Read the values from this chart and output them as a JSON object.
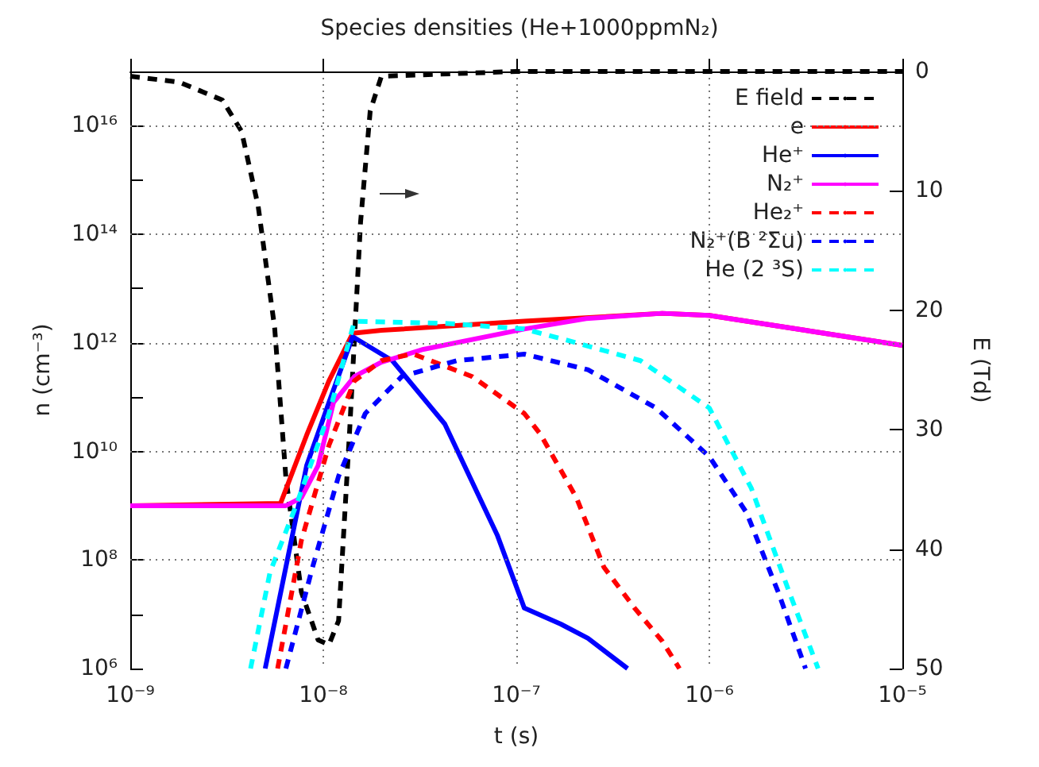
{
  "chart_data": {
    "type": "line",
    "title": "Species densities (He+1000ppmN₂)",
    "xlabel": "t (s)",
    "ylabel": "n (cm⁻³)",
    "y2label": "E (Td)",
    "log": "xy",
    "xlim": [
      1e-09,
      1e-05
    ],
    "xticks": [
      {
        "value": 1e-09,
        "label": "10⁻⁹"
      },
      {
        "value": 1e-08,
        "label": "10⁻⁸"
      },
      {
        "value": 1e-07,
        "label": "10⁻⁷"
      },
      {
        "value": 1e-06,
        "label": "10⁻⁶"
      },
      {
        "value": 1e-05,
        "label": "10⁻⁵"
      }
    ],
    "ylim": [
      1000000.0,
      1e+17
    ],
    "yticks": [
      {
        "value": 1000000.0,
        "label": "10⁶"
      },
      {
        "value": 10000000.0,
        "label": null
      },
      {
        "value": 100000000.0,
        "label": "10⁸"
      },
      {
        "value": 1000000000.0,
        "label": null
      },
      {
        "value": 10000000000.0,
        "label": "10¹⁰"
      },
      {
        "value": 100000000000.0,
        "label": null
      },
      {
        "value": 1000000000000.0,
        "label": "10¹²"
      },
      {
        "value": 10000000000000.0,
        "label": null
      },
      {
        "value": 100000000000000.0,
        "label": "10¹⁴"
      },
      {
        "value": 1000000000000000.0,
        "label": null
      },
      {
        "value": 1e+16,
        "label": "10¹⁶"
      }
    ],
    "y2lim": [
      50,
      0
    ],
    "y2ticks": [
      0,
      10,
      20,
      30,
      40,
      50
    ],
    "grid": true,
    "legend": "top right",
    "marker": "none",
    "series": [
      {
        "name": "E field",
        "color": "#000000",
        "axis": "y2",
        "line_style": "dashed",
        "x": [
          1e-09,
          1.8e-09,
          3e-09,
          3.77e-09,
          4.6e-09,
          5.6e-09,
          6.4e-09,
          7.7e-09,
          9.4e-09,
          1.07e-08,
          1.2e-08,
          1.37e-08,
          1.56e-08,
          1.75e-08,
          2e-08,
          1e-07,
          1e-06,
          1e-05
        ],
        "values": [
          0.4,
          0.9,
          2.4,
          5,
          11.3,
          21.5,
          34,
          43.6,
          47.6,
          48,
          46,
          30,
          12.6,
          3.3,
          0.4,
          0,
          0,
          0
        ]
      },
      {
        "name": "e",
        "color": "#ff0000",
        "line_style": "solid",
        "x": [
          1e-09,
          6e-09,
          8.2e-09,
          1.07e-08,
          1.42e-08,
          2e-08,
          1.1e-07,
          5.7e-07,
          1e-06,
          1e-05
        ],
        "values": [
          1000000000.0,
          1100000000.0,
          20000000000.0,
          200000000000.0,
          1500000000000.0,
          1700000000000.0,
          2500000000000.0,
          3500000000000.0,
          3200000000000.0,
          900000000000.0
        ]
      },
      {
        "name": "He⁺",
        "color": "#0000ff",
        "line_style": "solid",
        "x": [
          5e-09,
          6.4e-09,
          8.2e-09,
          1.07e-08,
          1.42e-08,
          2.28e-08,
          4.26e-08,
          7.96e-08,
          1.1e-07,
          1.7e-07,
          2.35e-07,
          3.77e-07
        ],
        "values": [
          1000000.0,
          74000000.0,
          5500000000.0,
          80000000000.0,
          1300000000000.0,
          470000000000.0,
          32000000000.0,
          290000000.0,
          13000000.0,
          6600000.0,
          3600000.0,
          1000000.0
        ]
      },
      {
        "name": "N₂⁺",
        "color": "#ff00ff",
        "line_style": "solid",
        "x": [
          1e-09,
          6.4e-09,
          7.7e-09,
          9.4e-09,
          1.13e-08,
          1.45e-08,
          2e-08,
          3.3e-08,
          1.1e-07,
          2.3e-07,
          5.7e-07,
          1e-06,
          1e-05
        ],
        "values": [
          1000000000.0,
          1000000000.0,
          1400000000.0,
          5500000000.0,
          80000000000.0,
          240000000000.0,
          440000000000.0,
          760000000000.0,
          1800000000000.0,
          2800000000000.0,
          3500000000000.0,
          3200000000000.0,
          900000000000.0
        ]
      },
      {
        "name": "He₂⁺",
        "color": "#ff0000",
        "line_style": "dashed",
        "x": [
          5.8e-09,
          7.7e-09,
          1.07e-08,
          1.45e-08,
          2e-08,
          2.9e-08,
          5.9e-08,
          1.1e-07,
          1.33e-07,
          2.05e-07,
          2.84e-07,
          4.1e-07,
          5.7e-07,
          7e-07
        ],
        "values": [
          1000000.0,
          230000000.0,
          13000000000.0,
          200000000000.0,
          470000000000.0,
          630000000000.0,
          240000000000.0,
          50000000000.0,
          21000000000.0,
          1400000000.0,
          74000000.0,
          13000000.0,
          3200000.0,
          1000000.0
        ]
      },
      {
        "name": "N₂⁺(B ²Σu)",
        "color": "#0000ff",
        "line_style": "dashed",
        "x": [
          6.4e-09,
          8.8e-09,
          1.2e-08,
          1.65e-08,
          2.55e-08,
          4.9e-08,
          1.1e-07,
          2.35e-07,
          5.3e-07,
          1e-06,
          1.56e-06,
          2.28e-06,
          3.15e-06
        ],
        "values": [
          1000000.0,
          74000000.0,
          3500000000.0,
          50000000000.0,
          240000000000.0,
          470000000000.0,
          620000000000.0,
          320000000000.0,
          63000000000.0,
          8000000000.0,
          740000000.0,
          25000000.0,
          1000000.0
        ]
      },
      {
        "name": "He (2 ³S)",
        "color": "#00ffff",
        "line_style": "dashed",
        "x": [
          4.2e-09,
          5.3e-09,
          7.3e-09,
          1.07e-08,
          1.45e-08,
          4.26e-08,
          1.1e-07,
          1.7e-07,
          4.4e-07,
          1e-06,
          1.65e-06,
          2.6e-06,
          3.66e-06
        ],
        "values": [
          1000000.0,
          60000000.0,
          1100000000.0,
          50000000000.0,
          2500000000000.0,
          2300000000000.0,
          1800000000000.0,
          1200000000000.0,
          470000000000.0,
          63000000000.0,
          2100000000.0,
          25000000.0,
          1000000.0
        ]
      }
    ]
  }
}
